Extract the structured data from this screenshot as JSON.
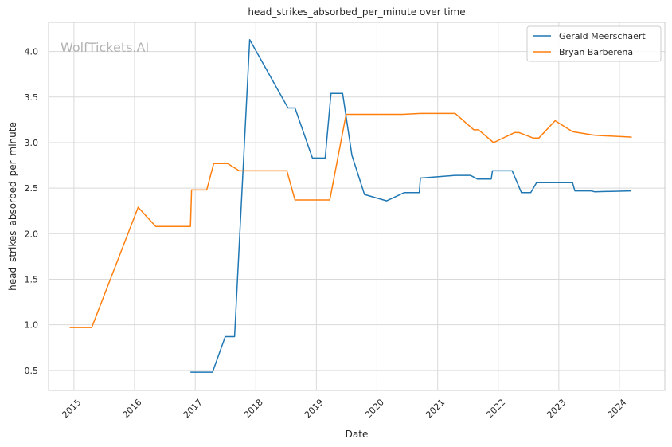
{
  "chart_data": {
    "type": "line",
    "title": "head_strikes_absorbed_per_minute over time",
    "xlabel": "Date",
    "ylabel": "head_strikes_absorbed_per_minute",
    "watermark": "WolfTickets.AI",
    "x_tick_labels": [
      "2015",
      "2016",
      "2017",
      "2018",
      "2019",
      "2020",
      "2021",
      "2022",
      "2023",
      "2024"
    ],
    "y_ticks": [
      0.5,
      1.0,
      1.5,
      2.0,
      2.5,
      3.0,
      3.5,
      4.0
    ],
    "y_tick_labels": [
      "0.5",
      "1.0",
      "1.5",
      "2.0",
      "2.5",
      "3.0",
      "3.5",
      "4.0"
    ],
    "xlim": [
      "2014-08-01",
      "2024-10-01"
    ],
    "ylim": [
      0.28,
      4.32
    ],
    "grid": true,
    "legend_position": "top-right",
    "colors": {
      "Gerald Meerschaert": "#1f77b4",
      "Bryan Barberena": "#ff7f0e"
    },
    "series": [
      {
        "name": "Gerald Meerschaert",
        "color": "#1f77b4",
        "points": [
          [
            "2016-12-03",
            0.48
          ],
          [
            "2017-04-15",
            0.48
          ],
          [
            "2017-07-01",
            0.87
          ],
          [
            "2017-08-26",
            0.87
          ],
          [
            "2017-11-25",
            4.13
          ],
          [
            "2018-07-14",
            3.38
          ],
          [
            "2018-08-25",
            3.38
          ],
          [
            "2018-12-08",
            2.83
          ],
          [
            "2019-02-23",
            2.83
          ],
          [
            "2019-03-30",
            3.54
          ],
          [
            "2019-06-08",
            3.54
          ],
          [
            "2019-08-03",
            2.86
          ],
          [
            "2019-10-18",
            2.43
          ],
          [
            "2020-02-29",
            2.36
          ],
          [
            "2020-06-13",
            2.45
          ],
          [
            "2020-09-12",
            2.45
          ],
          [
            "2020-09-19",
            2.61
          ],
          [
            "2021-04-17",
            2.64
          ],
          [
            "2021-07-17",
            2.64
          ],
          [
            "2021-08-28",
            2.6
          ],
          [
            "2021-11-20",
            2.6
          ],
          [
            "2021-11-27",
            2.69
          ],
          [
            "2022-03-26",
            2.69
          ],
          [
            "2022-05-21",
            2.45
          ],
          [
            "2022-07-16",
            2.45
          ],
          [
            "2022-08-20",
            2.56
          ],
          [
            "2023-03-25",
            2.56
          ],
          [
            "2023-04-08",
            2.47
          ],
          [
            "2023-07-15",
            2.47
          ],
          [
            "2023-08-05",
            2.46
          ],
          [
            "2024-03-09",
            2.47
          ]
        ]
      },
      {
        "name": "Bryan Barberena",
        "color": "#ff7f0e",
        "points": [
          [
            "2014-12-06",
            0.97
          ],
          [
            "2015-04-18",
            0.97
          ],
          [
            "2016-01-23",
            2.29
          ],
          [
            "2016-05-08",
            2.08
          ],
          [
            "2016-12-03",
            2.08
          ],
          [
            "2016-12-10",
            2.48
          ],
          [
            "2017-03-11",
            2.48
          ],
          [
            "2017-04-22",
            2.77
          ],
          [
            "2017-07-15",
            2.77
          ],
          [
            "2017-09-23",
            2.69
          ],
          [
            "2018-07-07",
            2.69
          ],
          [
            "2018-08-25",
            2.37
          ],
          [
            "2019-03-23",
            2.37
          ],
          [
            "2019-06-29",
            3.31
          ],
          [
            "2020-06-06",
            3.31
          ],
          [
            "2020-09-19",
            3.32
          ],
          [
            "2021-04-17",
            3.32
          ],
          [
            "2021-08-07",
            3.14
          ],
          [
            "2021-09-04",
            3.14
          ],
          [
            "2021-12-04",
            3.0
          ],
          [
            "2022-04-09",
            3.11
          ],
          [
            "2022-05-07",
            3.11
          ],
          [
            "2022-07-30",
            3.05
          ],
          [
            "2022-09-03",
            3.05
          ],
          [
            "2022-12-10",
            3.24
          ],
          [
            "2023-03-25",
            3.12
          ],
          [
            "2023-08-05",
            3.08
          ],
          [
            "2024-03-16",
            3.06
          ]
        ]
      }
    ]
  }
}
